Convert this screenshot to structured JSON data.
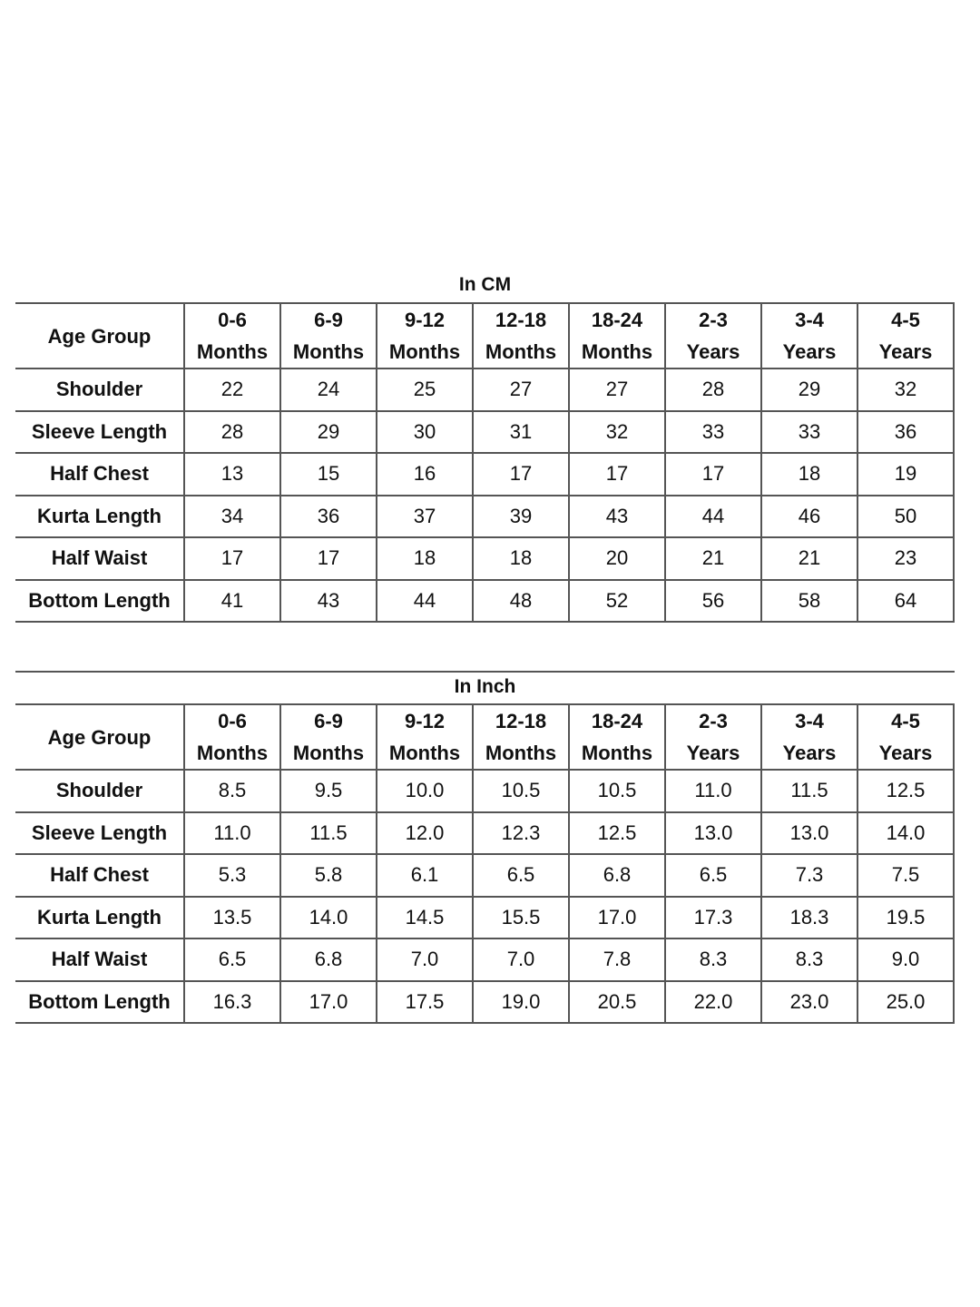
{
  "tables": [
    {
      "title": "In CM",
      "header_label": "Age Group",
      "columns": [
        {
          "range": "0-6",
          "unit": "Months"
        },
        {
          "range": "6-9",
          "unit": "Months"
        },
        {
          "range": "9-12",
          "unit": "Months"
        },
        {
          "range": "12-18",
          "unit": "Months"
        },
        {
          "range": "18-24",
          "unit": "Months"
        },
        {
          "range": "2-3",
          "unit": "Years"
        },
        {
          "range": "3-4",
          "unit": "Years"
        },
        {
          "range": "4-5",
          "unit": "Years"
        }
      ],
      "rows": [
        {
          "label": "Shoulder",
          "values": [
            "22",
            "24",
            "25",
            "27",
            "27",
            "28",
            "29",
            "32"
          ]
        },
        {
          "label": "Sleeve Length",
          "values": [
            "28",
            "29",
            "30",
            "31",
            "32",
            "33",
            "33",
            "36"
          ]
        },
        {
          "label": "Half Chest",
          "values": [
            "13",
            "15",
            "16",
            "17",
            "17",
            "17",
            "18",
            "19"
          ]
        },
        {
          "label": "Kurta Length",
          "values": [
            "34",
            "36",
            "37",
            "39",
            "43",
            "44",
            "46",
            "50"
          ]
        },
        {
          "label": "Half Waist",
          "values": [
            "17",
            "17",
            "18",
            "18",
            "20",
            "21",
            "21",
            "23"
          ]
        },
        {
          "label": "Bottom Length",
          "values": [
            "41",
            "43",
            "44",
            "48",
            "52",
            "56",
            "58",
            "64"
          ]
        }
      ]
    },
    {
      "title": "In Inch",
      "header_label": "Age Group",
      "columns": [
        {
          "range": "0-6",
          "unit": "Months"
        },
        {
          "range": "6-9",
          "unit": "Months"
        },
        {
          "range": "9-12",
          "unit": "Months"
        },
        {
          "range": "12-18",
          "unit": "Months"
        },
        {
          "range": "18-24",
          "unit": "Months"
        },
        {
          "range": "2-3",
          "unit": "Years"
        },
        {
          "range": "3-4",
          "unit": "Years"
        },
        {
          "range": "4-5",
          "unit": "Years"
        }
      ],
      "rows": [
        {
          "label": "Shoulder",
          "values": [
            "8.5",
            "9.5",
            "10.0",
            "10.5",
            "10.5",
            "11.0",
            "11.5",
            "12.5"
          ]
        },
        {
          "label": "Sleeve Length",
          "values": [
            "11.0",
            "11.5",
            "12.0",
            "12.3",
            "12.5",
            "13.0",
            "13.0",
            "14.0"
          ]
        },
        {
          "label": "Half Chest",
          "values": [
            "5.3",
            "5.8",
            "6.1",
            "6.5",
            "6.8",
            "6.5",
            "7.3",
            "7.5"
          ]
        },
        {
          "label": "Kurta Length",
          "values": [
            "13.5",
            "14.0",
            "14.5",
            "15.5",
            "17.0",
            "17.3",
            "18.3",
            "19.5"
          ]
        },
        {
          "label": "Half Waist",
          "values": [
            "6.5",
            "6.8",
            "7.0",
            "7.0",
            "7.8",
            "8.3",
            "8.3",
            "9.0"
          ]
        },
        {
          "label": "Bottom Length",
          "values": [
            "16.3",
            "17.0",
            "17.5",
            "19.0",
            "20.5",
            "22.0",
            "23.0",
            "25.0"
          ]
        }
      ]
    }
  ]
}
